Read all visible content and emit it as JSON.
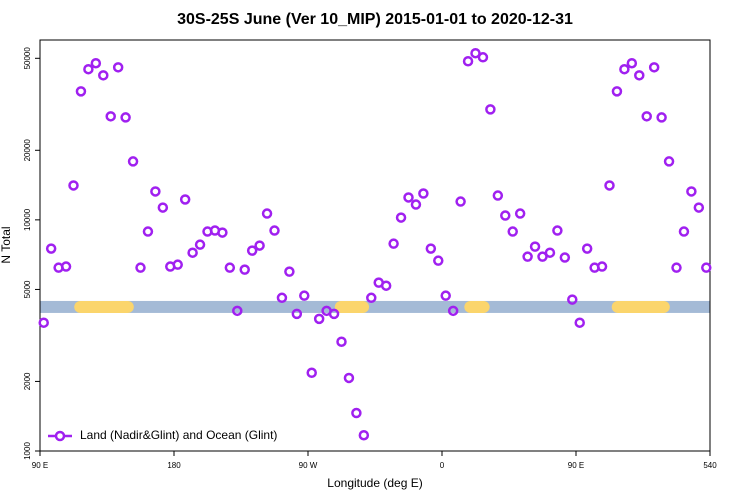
{
  "chart_data": {
    "type": "scatter",
    "title": "30S-25S June (Ver 10_MIP)   2015-01-01 to 2020-12-31",
    "xlabel": "Longitude (deg E)",
    "ylabel": "N Total",
    "xlim": [
      90,
      540
    ],
    "xticks": [
      {
        "value": 90,
        "label": "90 E"
      },
      180,
      {
        "value": 270,
        "label": "90 W"
      },
      {
        "value": 360,
        "label": "0"
      },
      {
        "value": 450,
        "label": "90 E"
      },
      540
    ],
    "ylim": [
      1000,
      60000
    ],
    "log_y": true,
    "yticks": [
      1000,
      2000,
      5000,
      10000,
      20000,
      50000
    ],
    "legend": "bottom-left",
    "band": {
      "value": 4200,
      "color": "#a4bad6",
      "highlight_color": "#fbd56c",
      "highlights": [
        [
          113,
          153
        ],
        [
          288,
          311
        ],
        [
          375,
          392
        ],
        [
          474,
          513
        ]
      ]
    },
    "series": [
      {
        "name": "Land (Nadir&Glint) and Ocean (Glint)",
        "color": "#a020f0",
        "x": [
          92.5,
          97.5,
          102.5,
          107.5,
          112.5,
          117.5,
          122.5,
          127.5,
          132.5,
          137.5,
          142.5,
          147.5,
          152.5,
          157.5,
          162.5,
          167.5,
          172.5,
          177.5,
          182.5,
          187.5,
          192.5,
          197.5,
          202.5,
          207.5,
          212.5,
          217.5,
          222.5,
          227.5,
          232.5,
          237.5,
          242.5,
          247.5,
          252.5,
          257.5,
          262.5,
          267.5,
          272.5,
          277.5,
          282.5,
          287.5,
          292.5,
          297.5,
          302.5,
          307.5,
          312.5,
          317.5,
          322.5,
          327.5,
          332.5,
          337.5,
          342.5,
          347.5,
          352.5,
          357.5,
          362.5,
          367.5,
          372.5,
          377.5,
          382.5,
          387.5,
          392.5,
          397.5,
          402.5,
          407.5,
          412.5,
          417.5,
          422.5,
          427.5,
          432.5,
          437.5,
          442.5,
          447.5,
          452.5,
          457.5,
          462.5,
          467.5,
          472.5,
          477.5,
          482.5,
          487.5,
          492.5,
          497.5,
          502.5,
          507.5,
          512.5,
          517.5,
          522.5,
          527.5,
          532.5,
          537.5
        ],
        "values": [
          3590,
          7510,
          6210,
          6280,
          14090,
          35970,
          44850,
          47600,
          42200,
          28050,
          45700,
          27750,
          17900,
          6210,
          8900,
          13270,
          11300,
          6280,
          6400,
          12250,
          7210,
          7810,
          8900,
          8990,
          8810,
          6210,
          4040,
          6090,
          7360,
          7740,
          10650,
          8990,
          4600,
          5970,
          3920,
          4700,
          2180,
          3730,
          4040,
          3920,
          2970,
          2070,
          1460,
          1170,
          4600,
          5350,
          5190,
          7890,
          10230,
          12500,
          11650,
          13000,
          7510,
          6660,
          4700,
          4040,
          12000,
          48550,
          52600,
          50500,
          30060,
          12740,
          10440,
          8900,
          10650,
          6930,
          7660,
          6930,
          7210,
          8990,
          6870,
          4520,
          3590,
          7510,
          6210,
          6280,
          14090,
          35970,
          44850,
          47600,
          42200,
          28050,
          45700,
          27750,
          17900,
          6210,
          8900,
          13270,
          11300,
          6210
        ]
      }
    ]
  }
}
